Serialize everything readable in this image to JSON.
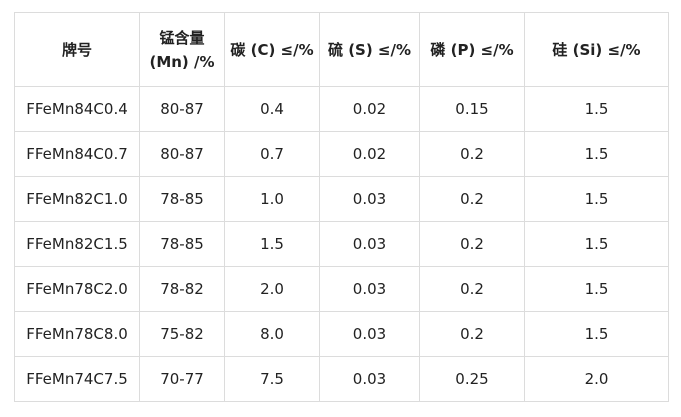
{
  "table": {
    "headers": {
      "grade": "牌号",
      "mn_line1": "锰含量",
      "mn_line2": "(Mn) /%",
      "c": "碳 (C) ≤/%",
      "s": "硫 (S) ≤/%",
      "p": "磷 (P) ≤/%",
      "si": "硅 (Si) ≤/%"
    },
    "rows": [
      {
        "grade": "FFeMn84C0.4",
        "mn": "80-87",
        "c": "0.4",
        "s": "0.02",
        "p": "0.15",
        "si": "1.5"
      },
      {
        "grade": "FFeMn84C0.7",
        "mn": "80-87",
        "c": "0.7",
        "s": "0.02",
        "p": "0.2",
        "si": "1.5"
      },
      {
        "grade": "FFeMn82C1.0",
        "mn": "78-85",
        "c": "1.0",
        "s": "0.03",
        "p": "0.2",
        "si": "1.5"
      },
      {
        "grade": "FFeMn82C1.5",
        "mn": "78-85",
        "c": "1.5",
        "s": "0.03",
        "p": "0.2",
        "si": "1.5"
      },
      {
        "grade": "FFeMn78C2.0",
        "mn": "78-82",
        "c": "2.0",
        "s": "0.03",
        "p": "0.2",
        "si": "1.5"
      },
      {
        "grade": "FFeMn78C8.0",
        "mn": "75-82",
        "c": "8.0",
        "s": "0.03",
        "p": "0.2",
        "si": "1.5"
      },
      {
        "grade": "FFeMn74C7.5",
        "mn": "70-77",
        "c": "7.5",
        "s": "0.03",
        "p": "0.25",
        "si": "2.0"
      }
    ]
  }
}
